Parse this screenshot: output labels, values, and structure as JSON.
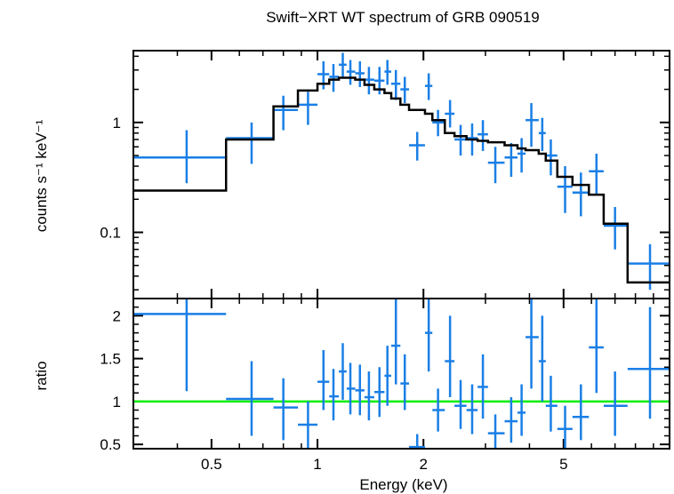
{
  "chart_data": {
    "type": "scatter",
    "title": "Swift−XRT WT spectrum of GRB 090519",
    "xlabel": "Energy (keV)",
    "xscale": "log",
    "xlim": [
      0.3,
      10
    ],
    "xticklabels": [
      {
        "value": 0.5,
        "label": "0.5"
      },
      {
        "value": 1,
        "label": "1"
      },
      {
        "value": 2,
        "label": "2"
      },
      {
        "value": 5,
        "label": "5"
      }
    ],
    "colors": {
      "data": "#1a7fe6",
      "model": "#000000",
      "unity": "#00ee00"
    },
    "panels": [
      {
        "name": "spectrum",
        "ylabel": "counts s⁻¹ keV⁻¹",
        "yscale": "log",
        "ylim": [
          0.025,
          4.5
        ],
        "yticklabels": [
          {
            "value": 1,
            "label": "1"
          },
          {
            "value": 0.1,
            "label": "0.1"
          }
        ],
        "series": [
          {
            "type": "errorbar",
            "points": [
              {
                "x0": 0.3,
                "x1": 0.55,
                "x": 0.425,
                "y": 0.48,
                "ylo": 0.28,
                "yhi": 0.85
              },
              {
                "x0": 0.55,
                "x1": 0.75,
                "x": 0.65,
                "y": 0.72,
                "ylo": 0.42,
                "yhi": 1.0
              },
              {
                "x0": 0.75,
                "x1": 0.88,
                "x": 0.8,
                "y": 1.3,
                "ylo": 0.85,
                "yhi": 1.75
              },
              {
                "x0": 0.88,
                "x1": 1.0,
                "x": 0.94,
                "y": 1.45,
                "ylo": 0.95,
                "yhi": 1.9
              },
              {
                "x0": 1.0,
                "x1": 1.08,
                "x": 1.04,
                "y": 2.75,
                "ylo": 2.0,
                "yhi": 3.6
              },
              {
                "x0": 1.08,
                "x1": 1.15,
                "x": 1.11,
                "y": 2.6,
                "ylo": 1.9,
                "yhi": 3.4
              },
              {
                "x0": 1.15,
                "x1": 1.21,
                "x": 1.18,
                "y": 3.35,
                "ylo": 2.6,
                "yhi": 4.3
              },
              {
                "x0": 1.21,
                "x1": 1.28,
                "x": 1.24,
                "y": 2.9,
                "ylo": 2.2,
                "yhi": 3.7
              },
              {
                "x0": 1.28,
                "x1": 1.36,
                "x": 1.32,
                "y": 2.8,
                "ylo": 2.1,
                "yhi": 3.6
              },
              {
                "x0": 1.36,
                "x1": 1.45,
                "x": 1.4,
                "y": 2.45,
                "ylo": 1.8,
                "yhi": 3.2
              },
              {
                "x0": 1.45,
                "x1": 1.55,
                "x": 1.5,
                "y": 2.4,
                "ylo": 1.8,
                "yhi": 3.2
              },
              {
                "x0": 1.55,
                "x1": 1.62,
                "x": 1.58,
                "y": 2.9,
                "ylo": 2.2,
                "yhi": 3.7
              },
              {
                "x0": 1.62,
                "x1": 1.72,
                "x": 1.67,
                "y": 2.25,
                "ylo": 1.6,
                "yhi": 3.0
              },
              {
                "x0": 1.72,
                "x1": 1.82,
                "x": 1.77,
                "y": 2.0,
                "ylo": 1.5,
                "yhi": 2.6
              },
              {
                "x0": 1.82,
                "x1": 2.02,
                "x": 1.92,
                "y": 0.62,
                "ylo": 0.45,
                "yhi": 0.82
              },
              {
                "x0": 2.02,
                "x1": 2.12,
                "x": 2.07,
                "y": 2.15,
                "ylo": 1.6,
                "yhi": 2.8
              },
              {
                "x0": 2.12,
                "x1": 2.3,
                "x": 2.2,
                "y": 1.0,
                "ylo": 0.75,
                "yhi": 1.3
              },
              {
                "x0": 2.3,
                "x1": 2.45,
                "x": 2.38,
                "y": 1.2,
                "ylo": 0.9,
                "yhi": 1.6
              },
              {
                "x0": 2.45,
                "x1": 2.65,
                "x": 2.55,
                "y": 0.7,
                "ylo": 0.5,
                "yhi": 0.95
              },
              {
                "x0": 2.65,
                "x1": 2.85,
                "x": 2.75,
                "y": 0.72,
                "ylo": 0.5,
                "yhi": 0.98
              },
              {
                "x0": 2.85,
                "x1": 3.05,
                "x": 2.95,
                "y": 0.78,
                "ylo": 0.55,
                "yhi": 1.05
              },
              {
                "x0": 3.05,
                "x1": 3.4,
                "x": 3.2,
                "y": 0.43,
                "ylo": 0.28,
                "yhi": 0.6
              },
              {
                "x0": 3.4,
                "x1": 3.7,
                "x": 3.55,
                "y": 0.48,
                "ylo": 0.32,
                "yhi": 0.65
              },
              {
                "x0": 3.7,
                "x1": 3.9,
                "x": 3.8,
                "y": 0.52,
                "ylo": 0.35,
                "yhi": 0.72
              },
              {
                "x0": 3.9,
                "x1": 4.25,
                "x": 4.05,
                "y": 1.05,
                "ylo": 0.6,
                "yhi": 1.5
              },
              {
                "x0": 4.25,
                "x1": 4.45,
                "x": 4.35,
                "y": 0.8,
                "ylo": 0.55,
                "yhi": 1.1
              },
              {
                "x0": 4.45,
                "x1": 4.8,
                "x": 4.6,
                "y": 0.5,
                "ylo": 0.33,
                "yhi": 0.7
              },
              {
                "x0": 4.8,
                "x1": 5.3,
                "x": 5.05,
                "y": 0.26,
                "ylo": 0.15,
                "yhi": 0.4
              },
              {
                "x0": 5.3,
                "x1": 5.9,
                "x": 5.6,
                "y": 0.23,
                "ylo": 0.14,
                "yhi": 0.35
              },
              {
                "x0": 5.9,
                "x1": 6.5,
                "x": 6.2,
                "y": 0.36,
                "ylo": 0.22,
                "yhi": 0.52
              },
              {
                "x0": 6.5,
                "x1": 7.6,
                "x": 7.0,
                "y": 0.115,
                "ylo": 0.07,
                "yhi": 0.17
              },
              {
                "x0": 7.6,
                "x1": 10.0,
                "x": 8.8,
                "y": 0.052,
                "ylo": 0.03,
                "yhi": 0.078
              }
            ]
          },
          {
            "type": "step",
            "points": [
              {
                "x0": 0.3,
                "x1": 0.55,
                "y": 0.24
              },
              {
                "x0": 0.55,
                "x1": 0.75,
                "y": 0.7
              },
              {
                "x0": 0.75,
                "x1": 0.88,
                "y": 1.4
              },
              {
                "x0": 0.88,
                "x1": 1.0,
                "y": 1.95
              },
              {
                "x0": 1.0,
                "x1": 1.08,
                "y": 2.25
              },
              {
                "x0": 1.08,
                "x1": 1.15,
                "y": 2.45
              },
              {
                "x0": 1.15,
                "x1": 1.28,
                "y": 2.55
              },
              {
                "x0": 1.28,
                "x1": 1.36,
                "y": 2.45
              },
              {
                "x0": 1.36,
                "x1": 1.45,
                "y": 2.2
              },
              {
                "x0": 1.45,
                "x1": 1.55,
                "y": 2.0
              },
              {
                "x0": 1.55,
                "x1": 1.62,
                "y": 1.85
              },
              {
                "x0": 1.62,
                "x1": 1.72,
                "y": 1.65
              },
              {
                "x0": 1.72,
                "x1": 1.82,
                "y": 1.45
              },
              {
                "x0": 1.82,
                "x1": 2.02,
                "y": 1.3
              },
              {
                "x0": 2.02,
                "x1": 2.12,
                "y": 1.2
              },
              {
                "x0": 2.12,
                "x1": 2.3,
                "y": 1.05
              },
              {
                "x0": 2.3,
                "x1": 2.45,
                "y": 0.8
              },
              {
                "x0": 2.45,
                "x1": 2.65,
                "y": 0.75
              },
              {
                "x0": 2.65,
                "x1": 2.85,
                "y": 0.7
              },
              {
                "x0": 2.85,
                "x1": 3.05,
                "y": 0.68
              },
              {
                "x0": 3.05,
                "x1": 3.4,
                "y": 0.66
              },
              {
                "x0": 3.4,
                "x1": 3.7,
                "y": 0.62
              },
              {
                "x0": 3.7,
                "x1": 3.9,
                "y": 0.58
              },
              {
                "x0": 3.9,
                "x1": 4.25,
                "y": 0.56
              },
              {
                "x0": 4.25,
                "x1": 4.45,
                "y": 0.52
              },
              {
                "x0": 4.45,
                "x1": 4.8,
                "y": 0.45
              },
              {
                "x0": 4.8,
                "x1": 5.3,
                "y": 0.32
              },
              {
                "x0": 5.3,
                "x1": 5.9,
                "y": 0.27
              },
              {
                "x0": 5.9,
                "x1": 6.5,
                "y": 0.22
              },
              {
                "x0": 6.5,
                "x1": 7.6,
                "y": 0.12
              },
              {
                "x0": 7.6,
                "x1": 10.0,
                "y": 0.035
              }
            ]
          }
        ]
      },
      {
        "name": "ratio",
        "ylabel": "ratio",
        "yscale": "linear",
        "ylim": [
          0.45,
          2.2
        ],
        "yticklabels": [
          {
            "value": 0.5,
            "label": "0.5"
          },
          {
            "value": 1,
            "label": "1"
          },
          {
            "value": 1.5,
            "label": "1.5"
          },
          {
            "value": 2,
            "label": "2"
          }
        ],
        "reference_line": 1,
        "series": [
          {
            "type": "errorbar",
            "points": [
              {
                "x0": 0.3,
                "x1": 0.55,
                "x": 0.425,
                "y": 2.02,
                "ylo": 1.12,
                "yhi": 2.2
              },
              {
                "x0": 0.55,
                "x1": 0.75,
                "x": 0.65,
                "y": 1.03,
                "ylo": 0.6,
                "yhi": 1.47
              },
              {
                "x0": 0.75,
                "x1": 0.88,
                "x": 0.8,
                "y": 0.93,
                "ylo": 0.55,
                "yhi": 1.27
              },
              {
                "x0": 0.88,
                "x1": 1.0,
                "x": 0.94,
                "y": 0.73,
                "ylo": 0.45,
                "yhi": 1.0
              },
              {
                "x0": 1.0,
                "x1": 1.08,
                "x": 1.04,
                "y": 1.23,
                "ylo": 0.9,
                "yhi": 1.6
              },
              {
                "x0": 1.08,
                "x1": 1.15,
                "x": 1.11,
                "y": 1.06,
                "ylo": 0.78,
                "yhi": 1.38
              },
              {
                "x0": 1.15,
                "x1": 1.21,
                "x": 1.18,
                "y": 1.35,
                "ylo": 1.02,
                "yhi": 1.68
              },
              {
                "x0": 1.21,
                "x1": 1.28,
                "x": 1.24,
                "y": 1.15,
                "ylo": 0.85,
                "yhi": 1.45
              },
              {
                "x0": 1.28,
                "x1": 1.36,
                "x": 1.32,
                "y": 1.13,
                "ylo": 0.84,
                "yhi": 1.43
              },
              {
                "x0": 1.36,
                "x1": 1.45,
                "x": 1.4,
                "y": 1.05,
                "ylo": 0.78,
                "yhi": 1.35
              },
              {
                "x0": 1.45,
                "x1": 1.55,
                "x": 1.5,
                "y": 1.11,
                "ylo": 0.82,
                "yhi": 1.4
              },
              {
                "x0": 1.55,
                "x1": 1.62,
                "x": 1.58,
                "y": 1.3,
                "ylo": 0.95,
                "yhi": 1.65
              },
              {
                "x0": 1.62,
                "x1": 1.72,
                "x": 1.67,
                "y": 1.65,
                "ylo": 1.2,
                "yhi": 2.2
              },
              {
                "x0": 1.72,
                "x1": 1.82,
                "x": 1.77,
                "y": 1.21,
                "ylo": 0.9,
                "yhi": 1.55
              },
              {
                "x0": 1.82,
                "x1": 2.02,
                "x": 1.92,
                "y": 0.47,
                "ylo": 0.45,
                "yhi": 0.62
              },
              {
                "x0": 2.02,
                "x1": 2.12,
                "x": 2.07,
                "y": 1.8,
                "ylo": 1.35,
                "yhi": 2.2
              },
              {
                "x0": 2.12,
                "x1": 2.3,
                "x": 2.2,
                "y": 0.9,
                "ylo": 0.65,
                "yhi": 1.15
              },
              {
                "x0": 2.3,
                "x1": 2.45,
                "x": 2.38,
                "y": 1.47,
                "ylo": 1.05,
                "yhi": 2.0
              },
              {
                "x0": 2.45,
                "x1": 2.65,
                "x": 2.55,
                "y": 0.95,
                "ylo": 0.68,
                "yhi": 1.25
              },
              {
                "x0": 2.65,
                "x1": 2.85,
                "x": 2.75,
                "y": 0.9,
                "ylo": 0.62,
                "yhi": 1.2
              },
              {
                "x0": 2.85,
                "x1": 3.05,
                "x": 2.95,
                "y": 1.17,
                "ylo": 0.8,
                "yhi": 1.55
              },
              {
                "x0": 3.05,
                "x1": 3.4,
                "x": 3.2,
                "y": 0.63,
                "ylo": 0.45,
                "yhi": 0.85
              },
              {
                "x0": 3.4,
                "x1": 3.7,
                "x": 3.55,
                "y": 0.77,
                "ylo": 0.52,
                "yhi": 1.05
              },
              {
                "x0": 3.7,
                "x1": 3.9,
                "x": 3.8,
                "y": 0.87,
                "ylo": 0.6,
                "yhi": 1.2
              },
              {
                "x0": 3.9,
                "x1": 4.25,
                "x": 4.05,
                "y": 1.75,
                "ylo": 1.15,
                "yhi": 2.2
              },
              {
                "x0": 4.25,
                "x1": 4.45,
                "x": 4.35,
                "y": 1.47,
                "ylo": 1.0,
                "yhi": 2.0
              },
              {
                "x0": 4.45,
                "x1": 4.8,
                "x": 4.6,
                "y": 0.95,
                "ylo": 0.65,
                "yhi": 1.3
              },
              {
                "x0": 4.8,
                "x1": 5.3,
                "x": 5.05,
                "y": 0.68,
                "ylo": 0.45,
                "yhi": 0.95
              },
              {
                "x0": 5.3,
                "x1": 5.9,
                "x": 5.6,
                "y": 0.82,
                "ylo": 0.55,
                "yhi": 1.2
              },
              {
                "x0": 5.9,
                "x1": 6.5,
                "x": 6.2,
                "y": 1.63,
                "ylo": 1.1,
                "yhi": 2.2
              },
              {
                "x0": 6.5,
                "x1": 7.6,
                "x": 7.0,
                "y": 0.95,
                "ylo": 0.6,
                "yhi": 1.35
              },
              {
                "x0": 7.6,
                "x1": 10.0,
                "x": 8.8,
                "y": 1.38,
                "ylo": 0.8,
                "yhi": 2.1
              }
            ]
          }
        ]
      }
    ]
  }
}
